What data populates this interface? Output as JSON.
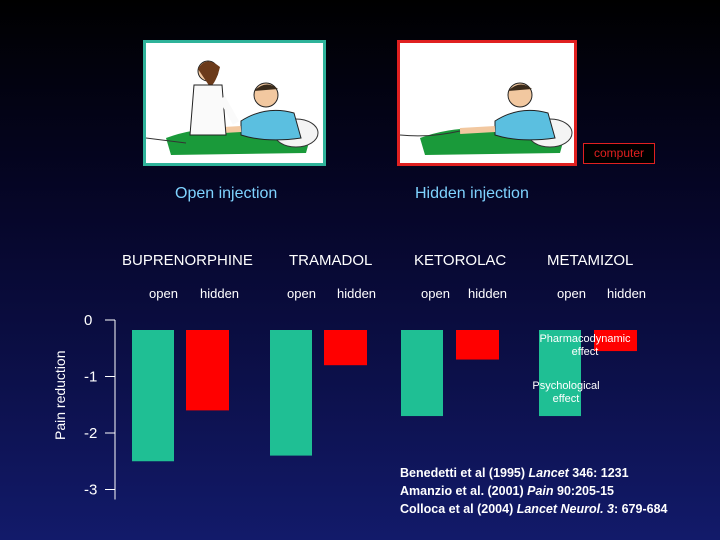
{
  "panels": {
    "open_title": "Open injection",
    "hidden_title": "Hidden injection",
    "computer_label": "computer"
  },
  "references": [
    {
      "authors": "Benedetti et al (1995) ",
      "journal": "Lancet",
      "rest": " 346: 1231"
    },
    {
      "authors": "Amanzio et al.  (2001) ",
      "journal": "Pain",
      "rest": " 90:205-15"
    },
    {
      "authors": "Colloca et al (2004) ",
      "journal": "Lancet Neurol. 3",
      "rest": ": 679-684"
    }
  ],
  "colors": {
    "open": "#1fbf94",
    "hidden": "#ff0000",
    "open_title": "#7fd3ff",
    "panel_open_border": "#2fb39a",
    "panel_hidden_border": "#e02020"
  },
  "chart_data": {
    "type": "bar",
    "ylabel": "Pain reduction",
    "yticks": [
      "0",
      "-1",
      "-2",
      "-3"
    ],
    "ylim": [
      -3,
      0
    ],
    "categories": [
      "BUPRENORPHINE",
      "TRAMADOL",
      "KETOROLAC",
      "METAMIZOL"
    ],
    "subcategories": [
      "open",
      "hidden"
    ],
    "series": [
      {
        "name": "open",
        "values": [
          -2.5,
          -2.4,
          -1.7,
          -1.7
        ]
      },
      {
        "name": "hidden",
        "values": [
          -1.6,
          -0.8,
          -0.7,
          -0.55
        ]
      }
    ],
    "annotations": [
      {
        "text": [
          "Pharmacodynamic",
          "effect"
        ],
        "value": -0.3
      },
      {
        "text": [
          "Psychological",
          "effect"
        ],
        "value": -1.2
      }
    ]
  }
}
